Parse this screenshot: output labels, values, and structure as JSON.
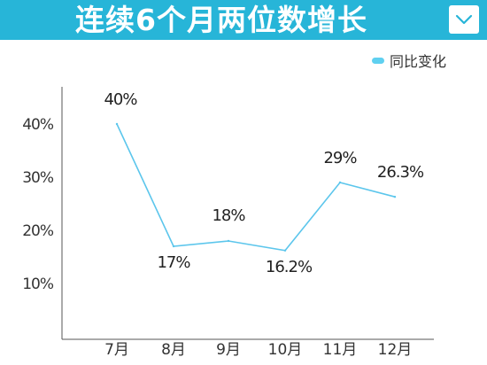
{
  "header": {
    "title": "连续6个月两位数增长",
    "menu_icon": "chevron-down-icon"
  },
  "colors": {
    "header_bg": "#27b5d8",
    "line": "#5cc6ec",
    "axis": "#555555"
  },
  "chart_data": {
    "type": "line",
    "title": "连续6个月两位数增长",
    "categories": [
      "7月",
      "8月",
      "9月",
      "10月",
      "11月",
      "12月"
    ],
    "series": [
      {
        "name": "同比变化",
        "values": [
          40,
          17,
          18,
          16.2,
          29,
          26.3
        ],
        "labels": [
          "40%",
          "17%",
          "18%",
          "16.2%",
          "29%",
          "26.3%"
        ]
      }
    ],
    "yticks": [
      "10%",
      "20%",
      "30%",
      "40%"
    ],
    "ytick_values": [
      10,
      20,
      30,
      40
    ],
    "ylim": [
      0,
      46
    ],
    "xlabel": "",
    "ylabel": "",
    "grid": false,
    "legend": "top-right"
  }
}
